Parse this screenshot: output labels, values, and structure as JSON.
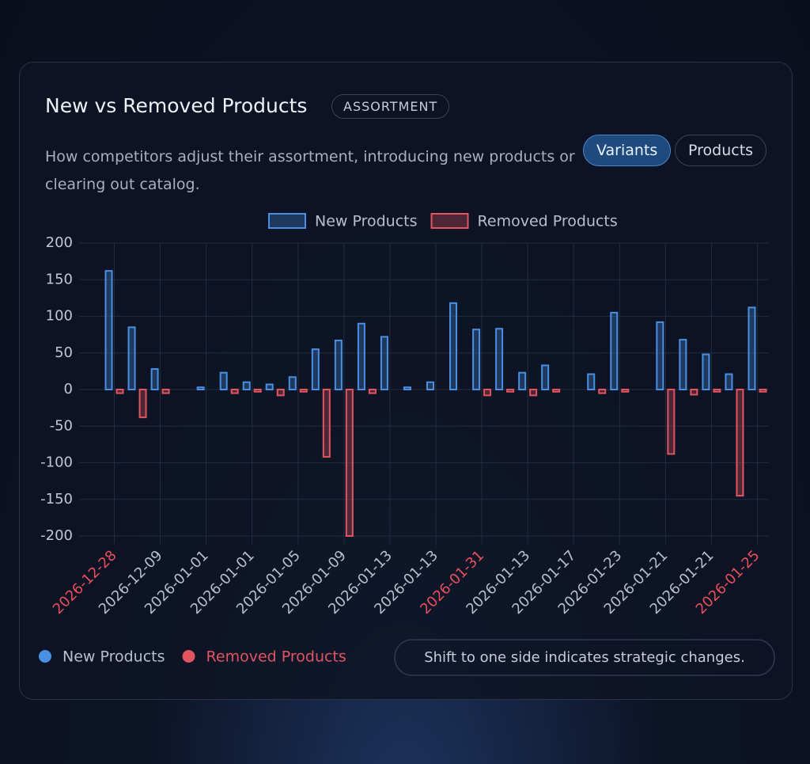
{
  "header": {
    "title": "New vs Removed Products",
    "badge": "ASSORTMENT",
    "subtitle": "How competitors adjust their assortment, introducing new products or clearing out catalog.",
    "toggles": [
      "Variants",
      "Products"
    ],
    "active_toggle": 0
  },
  "chart_data": {
    "type": "bar",
    "categories": [
      "2026-12-28",
      null,
      "2026-12-09",
      null,
      "2026-01-01",
      null,
      "2026-01-01",
      null,
      "2026-01-05",
      null,
      "2026-01-09",
      null,
      "2026-01-13",
      null,
      "2026-01-13",
      null,
      "2026-01-31",
      null,
      "2026-01-13",
      null,
      "2026-01-17",
      null,
      "2026-01-23",
      null,
      "2026-01-21",
      null,
      "2026-01-21",
      null,
      "2026-01-25"
    ],
    "highlighted_categories": [
      0,
      16,
      28
    ],
    "series": [
      {
        "name": "New Products",
        "color": "#4a90e2",
        "values": [
          162,
          85,
          28,
          null,
          3,
          23,
          10,
          7,
          17,
          55,
          67,
          90,
          72,
          3,
          10,
          118,
          82,
          83,
          23,
          33,
          null,
          21,
          105,
          null,
          92,
          68,
          48,
          21,
          112
        ]
      },
      {
        "name": "Removed Products",
        "color": "#e05560",
        "values": [
          -5,
          -38,
          -5,
          null,
          null,
          -5,
          -3,
          -8,
          -3,
          -92,
          -200,
          -5,
          null,
          null,
          null,
          null,
          -8,
          -3,
          -8,
          -3,
          null,
          -5,
          -3,
          null,
          -88,
          -7,
          -3,
          -145,
          -3
        ]
      }
    ],
    "ylim": [
      -200,
      200
    ],
    "yticks": [
      200,
      150,
      100,
      50,
      0,
      -50,
      -100,
      -150,
      -200
    ],
    "grid": true,
    "note": "Shift to one side indicates strategic changes."
  }
}
